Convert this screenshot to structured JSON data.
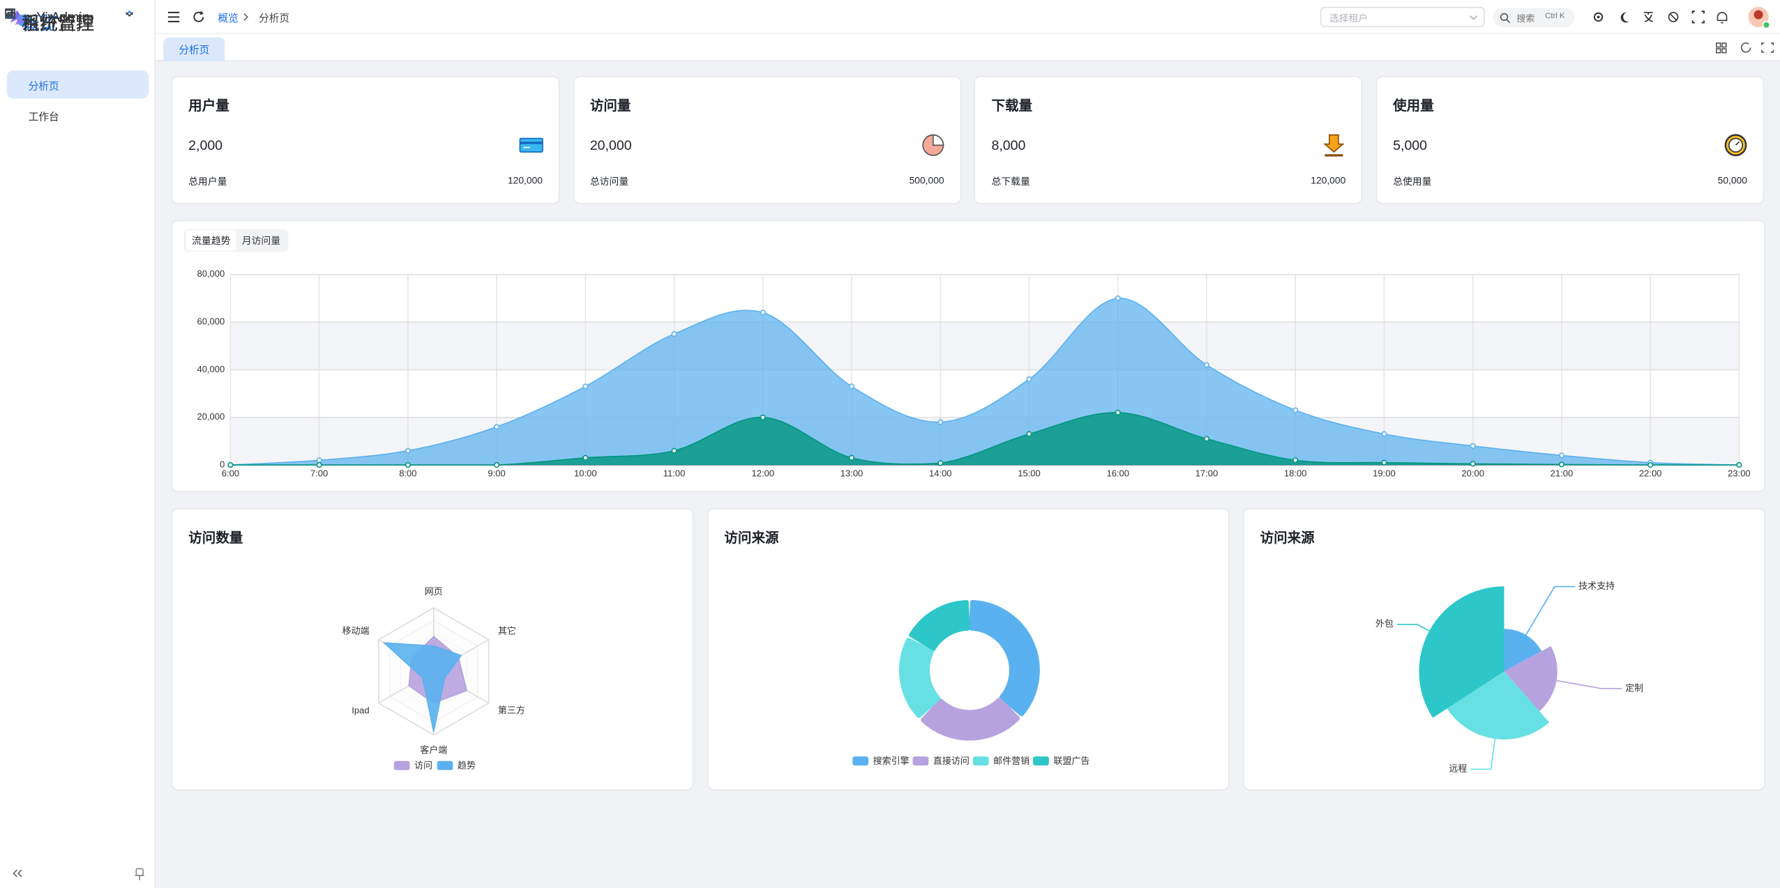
{
  "sidebar": {
    "logo": "Yi Admin",
    "menu": [
      {
        "label": "概览",
        "children": [
          "分析页",
          "工作台"
        ]
      },
      {
        "label": "系统管理"
      },
      {
        "label": "系统监控"
      },
      {
        "label": "租户管理"
      }
    ]
  },
  "header": {
    "breadcrumb": [
      "概览",
      "分析页"
    ],
    "tenant_placeholder": "选择租户",
    "search": "搜索",
    "shortcut": "Ctrl K"
  },
  "tabs": [
    "分析页"
  ],
  "cards": [
    {
      "title": "用户量",
      "value": "2,000",
      "total_label": "总用户量",
      "total": "120,000"
    },
    {
      "title": "访问量",
      "value": "20,000",
      "total_label": "总访问量",
      "total": "500,000"
    },
    {
      "title": "下载量",
      "value": "8,000",
      "total_label": "总下载量",
      "total": "120,000"
    },
    {
      "title": "使用量",
      "value": "5,000",
      "total_label": "总使用量",
      "total": "50,000"
    }
  ],
  "chart_data": [
    {
      "type": "line",
      "tabs": [
        "流量趋势",
        "月访问量"
      ],
      "categories": [
        "6:00",
        "7:00",
        "8:00",
        "9:00",
        "10:00",
        "11:00",
        "12:00",
        "13:00",
        "14:00",
        "15:00",
        "16:00",
        "17:00",
        "18:00",
        "19:00",
        "20:00",
        "21:00",
        "22:00",
        "23:00"
      ],
      "series": [
        {
          "color": "#5ab1ef",
          "values": [
            0,
            2000,
            6000,
            16000,
            33000,
            55000,
            64000,
            33000,
            18000,
            36000,
            70000,
            42000,
            23000,
            13000,
            8000,
            4000,
            1000,
            0
          ]
        },
        {
          "color": "#019680",
          "values": [
            0,
            0,
            0,
            0,
            3000,
            6000,
            20000,
            3000,
            800,
            13000,
            22000,
            11000,
            2000,
            1000,
            500,
            200,
            0,
            0
          ]
        }
      ],
      "ylim": [
        0,
        80000
      ],
      "yticks": [
        0,
        {
          "value": 20000,
          "label": "20,000"
        },
        {
          "value": 40000,
          "label": "40,000"
        },
        {
          "value": 60000,
          "label": "60,000"
        },
        {
          "value": 80000,
          "label": "80,000"
        }
      ],
      "grid": true
    },
    {
      "type": "radar",
      "title": "访问数量",
      "indicators": [
        "网页",
        "其它",
        "第三方",
        "客户端",
        "Ipad",
        "移动端"
      ],
      "rlim": [
        0,
        100
      ],
      "rticks": [
        20,
        40,
        60,
        80,
        100
      ],
      "series": [
        {
          "name": "访问",
          "color": "#b6a2de",
          "values": [
            55,
            45,
            60,
            50,
            45,
            40
          ]
        },
        {
          "name": "趋势",
          "color": "#5ab1ef",
          "values": [
            40,
            50,
            20,
            95,
            20,
            90
          ]
        }
      ],
      "legend": "bottom"
    },
    {
      "type": "pie",
      "title": "访问来源",
      "categories": [
        "搜索引擎",
        "直接访问",
        "邮件营销",
        "联盟广告"
      ],
      "values": [
        1048,
        735,
        580,
        484
      ],
      "colors": [
        "#5ab1ef",
        "#b6a2de",
        "#67e0e3",
        "#2ec7c9"
      ],
      "legend": "bottom"
    },
    {
      "type": "rose",
      "title": "访问来源",
      "categories": [
        "技术支持",
        "定制",
        "远程",
        "外包"
      ],
      "values": [
        20,
        25,
        32,
        40
      ],
      "colors": [
        "#5ab1ef",
        "#b6a2de",
        "#67e0e3",
        "#2ec7c9"
      ]
    }
  ]
}
